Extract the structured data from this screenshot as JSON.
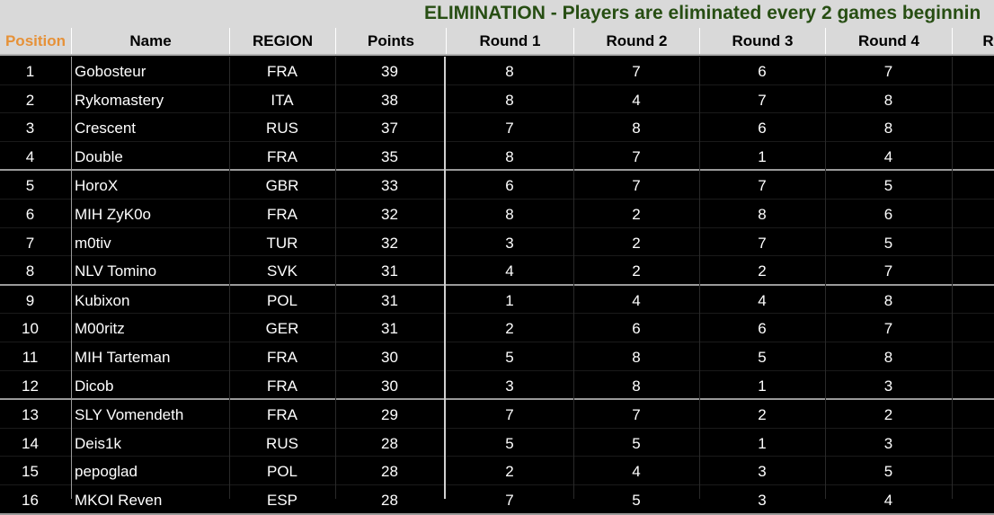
{
  "banner": {
    "text": "ELIMINATION - Players are eliminated every 2 games beginnin"
  },
  "columns": {
    "position": "Position",
    "name": "Name",
    "region": "REGION",
    "points": "Points",
    "round1": "Round 1",
    "round2": "Round 2",
    "round3": "Round 3",
    "round4": "Round 4",
    "round5": "R"
  },
  "rows": [
    {
      "pos": "1",
      "name": "Gobosteur",
      "region": "FRA",
      "points": "39",
      "r1": "8",
      "r2": "7",
      "r3": "6",
      "r4": "7"
    },
    {
      "pos": "2",
      "name": "Rykomastery",
      "region": "ITA",
      "points": "38",
      "r1": "8",
      "r2": "4",
      "r3": "7",
      "r4": "8"
    },
    {
      "pos": "3",
      "name": "Crescent",
      "region": "RUS",
      "points": "37",
      "r1": "7",
      "r2": "8",
      "r3": "6",
      "r4": "8"
    },
    {
      "pos": "4",
      "name": "Double",
      "region": "FRA",
      "points": "35",
      "r1": "8",
      "r2": "7",
      "r3": "1",
      "r4": "4"
    },
    {
      "pos": "5",
      "name": "HoroX",
      "region": "GBR",
      "points": "33",
      "r1": "6",
      "r2": "7",
      "r3": "7",
      "r4": "5"
    },
    {
      "pos": "6",
      "name": "MIH ZyK0o",
      "region": "FRA",
      "points": "32",
      "r1": "8",
      "r2": "2",
      "r3": "8",
      "r4": "6"
    },
    {
      "pos": "7",
      "name": "m0tiv",
      "region": "TUR",
      "points": "32",
      "r1": "3",
      "r2": "2",
      "r3": "7",
      "r4": "5"
    },
    {
      "pos": "8",
      "name": "NLV Tomino",
      "region": "SVK",
      "points": "31",
      "r1": "4",
      "r2": "2",
      "r3": "2",
      "r4": "7"
    },
    {
      "pos": "9",
      "name": "Kubixon",
      "region": "POL",
      "points": "31",
      "r1": "1",
      "r2": "4",
      "r3": "4",
      "r4": "8"
    },
    {
      "pos": "10",
      "name": "M00ritz",
      "region": "GER",
      "points": "31",
      "r1": "2",
      "r2": "6",
      "r3": "6",
      "r4": "7"
    },
    {
      "pos": "11",
      "name": "MIH Tarteman",
      "region": "FRA",
      "points": "30",
      "r1": "5",
      "r2": "8",
      "r3": "5",
      "r4": "8"
    },
    {
      "pos": "12",
      "name": "Dicob",
      "region": "FRA",
      "points": "30",
      "r1": "3",
      "r2": "8",
      "r3": "1",
      "r4": "3"
    },
    {
      "pos": "13",
      "name": "SLY Vomendeth",
      "region": "FRA",
      "points": "29",
      "r1": "7",
      "r2": "7",
      "r3": "2",
      "r4": "2"
    },
    {
      "pos": "14",
      "name": "Deis1k",
      "region": "RUS",
      "points": "28",
      "r1": "5",
      "r2": "5",
      "r3": "1",
      "r4": "3"
    },
    {
      "pos": "15",
      "name": "pepoglad",
      "region": "POL",
      "points": "28",
      "r1": "2",
      "r2": "4",
      "r3": "3",
      "r4": "5"
    },
    {
      "pos": "16",
      "name": "MKOI Reven",
      "region": "ESP",
      "points": "28",
      "r1": "7",
      "r2": "5",
      "r3": "3",
      "r4": "4"
    }
  ]
}
